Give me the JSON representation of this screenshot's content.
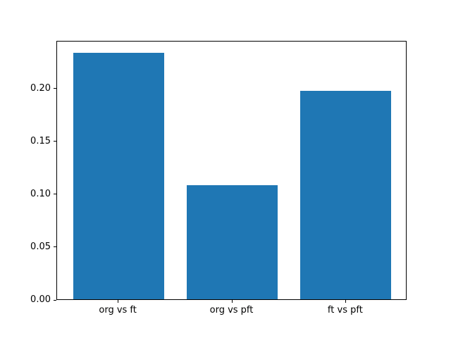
{
  "chart_data": {
    "type": "bar",
    "title": "",
    "xlabel": "",
    "ylabel": "",
    "categories": [
      "org vs ft",
      "org vs pft",
      "ft vs pft"
    ],
    "values": [
      0.233,
      0.108,
      0.197
    ],
    "ylim": [
      0,
      0.245
    ],
    "yticks": [
      0.0,
      0.05,
      0.1,
      0.15,
      0.2
    ],
    "ytick_labels": [
      "0.00",
      "0.05",
      "0.10",
      "0.15",
      "0.20"
    ],
    "grid": false,
    "legend": null,
    "bar_color": "#1f77b4",
    "spine_color": "#000000",
    "background_color": "#ffffff"
  }
}
